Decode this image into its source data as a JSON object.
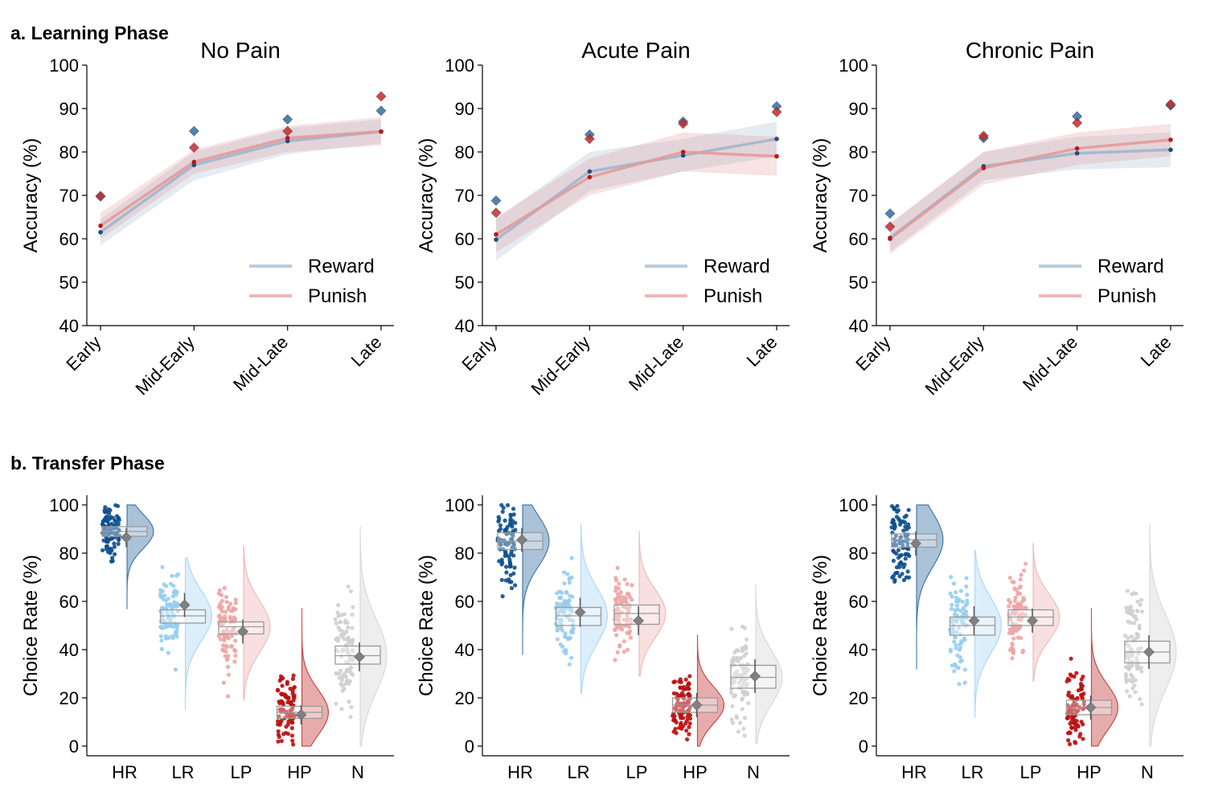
{
  "sections": {
    "learning": "a. Learning Phase",
    "transfer": "b. Transfer Phase"
  },
  "colors": {
    "reward_line": "#9db6cc",
    "punish_line": "#e39a9a",
    "reward_marker": "#2f6ea3",
    "punish_marker": "#c8282d",
    "reward_point": "#1f4f80",
    "punish_point": "#b51b1b",
    "HR": "#0c4f8c",
    "LR": "#97cdf0",
    "LP": "#eda5a5",
    "HP": "#b81010",
    "N": "#cfcfcf",
    "box": "#9a9a9a",
    "mean_marker": "#808080"
  },
  "chart_data": [
    {
      "type": "line",
      "title": "No Pain",
      "xlabel": "",
      "ylabel": "Accuracy (%)",
      "categories": [
        "Early",
        "Mid-Early",
        "Mid-Late",
        "Late"
      ],
      "ylim": [
        40,
        100
      ],
      "yticks": [
        40,
        50,
        60,
        70,
        80,
        90,
        100
      ],
      "legend": "bottom-right",
      "grid": false,
      "series": [
        {
          "name": "Reward",
          "values": [
            61.5,
            77,
            82.5,
            84.7
          ],
          "ci_low": [
            58.5,
            73.5,
            79.5,
            82
          ],
          "ci_high": [
            64.5,
            80,
            85.5,
            87.5
          ],
          "markers": [
            69.8,
            84.8,
            87.5,
            89.5
          ]
        },
        {
          "name": "Punish",
          "values": [
            63,
            77.7,
            83.2,
            84.7
          ],
          "ci_low": [
            60,
            75,
            80,
            81.5
          ],
          "ci_high": [
            66,
            80.5,
            86,
            88
          ],
          "markers": [
            69.8,
            81,
            84.8,
            92.8
          ]
        }
      ]
    },
    {
      "type": "line",
      "title": "Acute Pain",
      "xlabel": "",
      "ylabel": "Accuracy (%)",
      "categories": [
        "Early",
        "Mid-Early",
        "Mid-Late",
        "Late"
      ],
      "ylim": [
        40,
        100
      ],
      "yticks": [
        40,
        50,
        60,
        70,
        80,
        90,
        100
      ],
      "legend": "bottom-right",
      "grid": false,
      "series": [
        {
          "name": "Reward",
          "values": [
            59.8,
            75.5,
            79.2,
            83
          ],
          "ci_low": [
            55,
            71,
            75.5,
            79
          ],
          "ci_high": [
            64.5,
            80,
            83,
            87
          ],
          "markers": [
            68.8,
            84,
            87,
            90.5
          ]
        },
        {
          "name": "Punish",
          "values": [
            61,
            74.2,
            80,
            79
          ],
          "ci_low": [
            57,
            70,
            75.5,
            74.5
          ],
          "ci_high": [
            65,
            78.5,
            84.5,
            83.5
          ],
          "markers": [
            66,
            83,
            86.5,
            89.2
          ]
        }
      ]
    },
    {
      "type": "line",
      "title": "Chronic Pain",
      "xlabel": "",
      "ylabel": "Accuracy (%)",
      "categories": [
        "Early",
        "Mid-Early",
        "Mid-Late",
        "Late"
      ],
      "ylim": [
        40,
        100
      ],
      "yticks": [
        40,
        50,
        60,
        70,
        80,
        90,
        100
      ],
      "legend": "bottom-right",
      "grid": false,
      "series": [
        {
          "name": "Reward",
          "values": [
            60.2,
            76.7,
            79.7,
            80.5
          ],
          "ci_low": [
            57,
            73.5,
            76,
            76.5
          ],
          "ci_high": [
            63.5,
            80,
            83.5,
            84.5
          ],
          "markers": [
            65.8,
            83.2,
            88.2,
            90.7
          ]
        },
        {
          "name": "Punish",
          "values": [
            60,
            76.3,
            80.8,
            82.8
          ],
          "ci_low": [
            56.5,
            72.5,
            77,
            79
          ],
          "ci_high": [
            63.5,
            80,
            84.5,
            86.5
          ],
          "markers": [
            62.8,
            83.7,
            86.7,
            91
          ]
        }
      ]
    },
    {
      "type": "box",
      "title": "",
      "xlabel": "",
      "ylabel": "Choice Rate (%)",
      "categories": [
        "HR",
        "LR",
        "LP",
        "HP",
        "N"
      ],
      "ylim": [
        -4,
        104
      ],
      "yticks": [
        0,
        20,
        40,
        60,
        80,
        100
      ],
      "grid": false,
      "boxes": [
        {
          "q1": 87,
          "median": 89,
          "q3": 91,
          "mean": 86.5,
          "sem": 2.0,
          "min": 57,
          "max": 100
        },
        {
          "q1": 51,
          "median": 54,
          "q3": 56.5,
          "mean": 58.5,
          "sem": 2.5,
          "min": 15,
          "max": 78
        },
        {
          "q1": 46.5,
          "median": 49.5,
          "q3": 51.5,
          "mean": 47.5,
          "sem": 2.5,
          "min": 19,
          "max": 83
        },
        {
          "q1": 11.5,
          "median": 14,
          "q3": 16.5,
          "mean": 13,
          "sem": 2.0,
          "min": 0,
          "max": 57
        },
        {
          "q1": 34,
          "median": 37.5,
          "q3": 41.5,
          "mean": 37,
          "sem": 3.0,
          "min": 0,
          "max": 91
        }
      ]
    },
    {
      "type": "box",
      "title": "",
      "xlabel": "",
      "ylabel": "Choice Rate (%)",
      "categories": [
        "HR",
        "LR",
        "LP",
        "HP",
        "N"
      ],
      "ylim": [
        -4,
        104
      ],
      "yticks": [
        0,
        20,
        40,
        60,
        80,
        100
      ],
      "grid": false,
      "boxes": [
        {
          "q1": 81.5,
          "median": 85,
          "q3": 88.5,
          "mean": 85.5,
          "sem": 2.5,
          "min": 38,
          "max": 100
        },
        {
          "q1": 50,
          "median": 54,
          "q3": 57.5,
          "mean": 55.5,
          "sem": 3.0,
          "min": 22,
          "max": 92
        },
        {
          "q1": 50.5,
          "median": 55,
          "q3": 58.5,
          "mean": 52,
          "sem": 3.0,
          "min": 29,
          "max": 89
        },
        {
          "q1": 14,
          "median": 17,
          "q3": 20,
          "mean": 17,
          "sem": 2.5,
          "min": 0,
          "max": 46
        },
        {
          "q1": 24,
          "median": 28.5,
          "q3": 33.5,
          "mean": 29,
          "sem": 3.5,
          "min": 1,
          "max": 67
        }
      ]
    },
    {
      "type": "box",
      "title": "",
      "xlabel": "",
      "ylabel": "Choice Rate (%)",
      "categories": [
        "HR",
        "LR",
        "LP",
        "HP",
        "N"
      ],
      "ylim": [
        -4,
        104
      ],
      "yticks": [
        0,
        20,
        40,
        60,
        80,
        100
      ],
      "grid": false,
      "boxes": [
        {
          "q1": 82.5,
          "median": 85.5,
          "q3": 88,
          "mean": 84,
          "sem": 2.5,
          "min": 32,
          "max": 100
        },
        {
          "q1": 46,
          "median": 50,
          "q3": 53.5,
          "mean": 52,
          "sem": 3.0,
          "min": 12,
          "max": 81
        },
        {
          "q1": 50,
          "median": 53.5,
          "q3": 56.5,
          "mean": 52,
          "sem": 2.5,
          "min": 27,
          "max": 84
        },
        {
          "q1": 13,
          "median": 16,
          "q3": 19,
          "mean": 16,
          "sem": 2.5,
          "min": 0,
          "max": 57
        },
        {
          "q1": 34.5,
          "median": 39,
          "q3": 43.5,
          "mean": 39,
          "sem": 3.5,
          "min": 0,
          "max": 92
        }
      ]
    }
  ]
}
